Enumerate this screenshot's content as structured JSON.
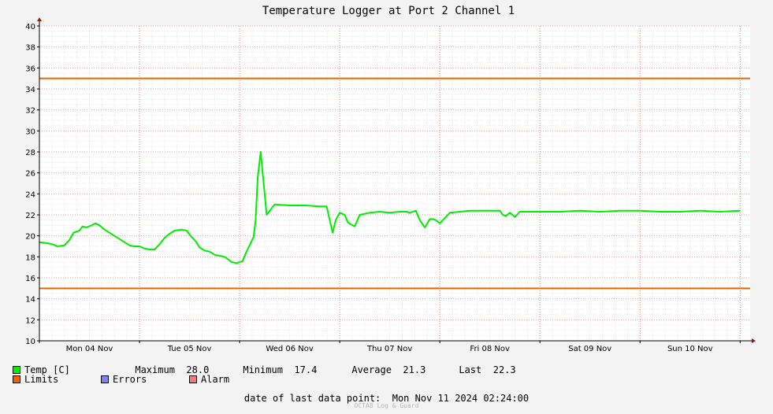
{
  "chart_data": {
    "type": "line",
    "title": "Temperature Logger at Port 2 Channel 1",
    "x_tick_labels": [
      "Mon 04 Nov",
      "Tue 05 Nov",
      "Wed 06 Nov",
      "Thu 07 Nov",
      "Fri 08 Nov",
      "Sat 09 Nov",
      "Sun 10 Nov"
    ],
    "x_range_days": [
      0,
      7.1
    ],
    "ylim": [
      10,
      40
    ],
    "y_ticks": [
      10,
      12,
      14,
      16,
      18,
      20,
      22,
      24,
      26,
      28,
      30,
      32,
      34,
      36,
      38,
      40
    ],
    "grid": true,
    "series": [
      {
        "name": "Temp [C]",
        "color": "#00ee00",
        "x": [
          0.0,
          0.08,
          0.13,
          0.18,
          0.25,
          0.3,
          0.34,
          0.4,
          0.43,
          0.47,
          0.52,
          0.56,
          0.6,
          0.65,
          0.7,
          0.75,
          0.8,
          0.85,
          0.9,
          0.95,
          1.0,
          1.05,
          1.1,
          1.15,
          1.2,
          1.25,
          1.3,
          1.35,
          1.42,
          1.47,
          1.52,
          1.56,
          1.6,
          1.65,
          1.7,
          1.75,
          1.8,
          1.85,
          1.88,
          1.92,
          1.97,
          2.0,
          2.03,
          2.06,
          2.08,
          2.1,
          2.12,
          2.14,
          2.16,
          2.18,
          2.21,
          2.24,
          2.27,
          2.35,
          2.5,
          2.65,
          2.8,
          2.87,
          2.9,
          2.93,
          2.96,
          3.0,
          3.05,
          3.08,
          3.11,
          3.15,
          3.2,
          3.3,
          3.4,
          3.5,
          3.6,
          3.67,
          3.7,
          3.73,
          3.76,
          3.8,
          3.85,
          3.9,
          3.93,
          3.96,
          4.0,
          4.1,
          4.2,
          4.3,
          4.4,
          4.5,
          4.6,
          4.63,
          4.66,
          4.7,
          4.75,
          4.8,
          4.9,
          5.0,
          5.2,
          5.4,
          5.6,
          5.8,
          6.0,
          6.2,
          6.4,
          6.6,
          6.8,
          7.0
        ],
        "values": [
          19.4,
          19.3,
          19.2,
          19.0,
          19.1,
          19.6,
          20.3,
          20.5,
          20.9,
          20.8,
          21.0,
          21.2,
          21.0,
          20.6,
          20.3,
          20.0,
          19.7,
          19.4,
          19.1,
          19.0,
          19.0,
          18.8,
          18.7,
          18.7,
          19.2,
          19.8,
          20.2,
          20.5,
          20.6,
          20.5,
          19.9,
          19.5,
          18.9,
          18.6,
          18.5,
          18.2,
          18.1,
          18.0,
          17.8,
          17.5,
          17.4,
          17.5,
          17.6,
          18.3,
          18.7,
          19.1,
          19.5,
          19.9,
          21.5,
          25.5,
          28.0,
          25.0,
          22.0,
          23.0,
          22.9,
          22.9,
          22.8,
          22.8,
          21.5,
          20.3,
          21.5,
          22.2,
          22.0,
          21.3,
          21.1,
          20.9,
          22.0,
          22.2,
          22.3,
          22.2,
          22.3,
          22.3,
          22.2,
          22.3,
          22.4,
          21.5,
          20.8,
          21.6,
          21.6,
          21.5,
          21.2,
          22.2,
          22.3,
          22.4,
          22.4,
          22.4,
          22.4,
          22.0,
          21.9,
          22.2,
          21.8,
          22.3,
          22.3,
          22.3,
          22.3,
          22.4,
          22.3,
          22.4,
          22.4,
          22.3,
          22.3,
          22.4,
          22.3,
          22.4
        ]
      },
      {
        "name": "Limits",
        "color": "#ee6600",
        "upper": 35,
        "lower": 15
      }
    ],
    "legend": {
      "temp_label": "Temp [C]",
      "limits_label": "Limits",
      "errors_label": "Errors",
      "alarm_label": "Alarm",
      "errors_color": "#7a86ee",
      "alarm_color": "#ee7a7a",
      "stats": [
        {
          "label": "Maximum",
          "value": "28.0"
        },
        {
          "label": "Minimum",
          "value": "17.4"
        },
        {
          "label": "Average",
          "value": "21.3"
        },
        {
          "label": "Last",
          "value": "22.3"
        }
      ]
    }
  },
  "footer": {
    "last_data_label": "date of last data point:",
    "last_data_value": "Mon Nov 11 2024 02:24:00",
    "watermark": "OCTA8 Log & Guard"
  }
}
